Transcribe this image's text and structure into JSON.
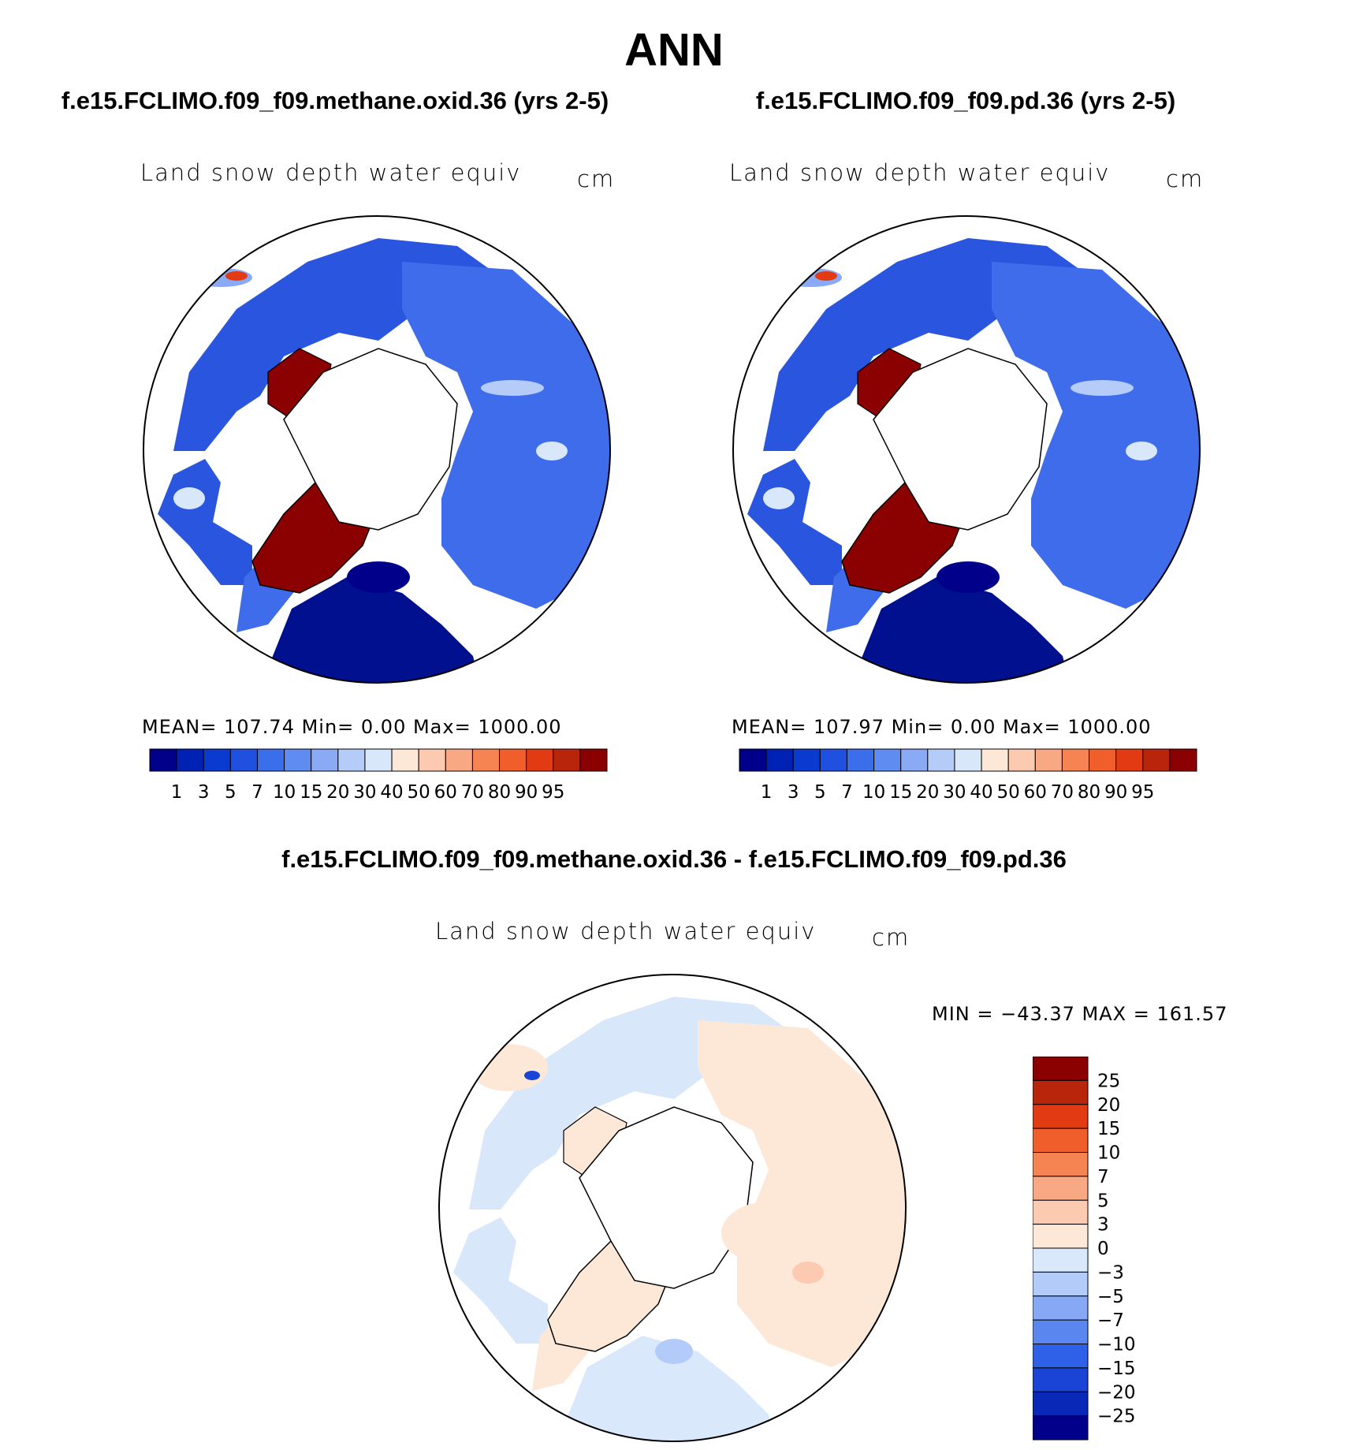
{
  "main_title": "ANN",
  "diff_title": "f.e15.FCLIMO.f09_f09.methane.oxid.36 - f.e15.FCLIMO.f09_f09.pd.36",
  "colors": {
    "land_seq": [
      "#00008b",
      "#0022b4",
      "#0a3ad0",
      "#2050e0",
      "#3b6eea",
      "#5f8cf0",
      "#8aaaf5",
      "#b5cbf8",
      "#d9e7fb"
    ],
    "warm_seq": [
      "#fde8d8",
      "#fbcab0",
      "#f8a882",
      "#f68352",
      "#f05e2b",
      "#e23a12",
      "#b9250a",
      "#8b0000"
    ],
    "diff_seq": [
      "#00008b",
      "#0a28b8",
      "#1a44d6",
      "#2e60e8",
      "#5a86f0",
      "#86a8f5",
      "#b3cbf9",
      "#dae8fc",
      "#fde8d8",
      "#fbcab0",
      "#f8a882",
      "#f68352",
      "#f05e2b",
      "#e23a12",
      "#b9250a",
      "#8b0000"
    ]
  },
  "panels": [
    {
      "case_title": "f.e15.FCLIMO.f09_f09.methane.oxid.36 (yrs 2-5)",
      "var_title": "Land snow depth water equiv",
      "units": "cm",
      "stats": "MEAN=  107.74    Min=       0.00    Max=  1000.00"
    },
    {
      "case_title": "f.e15.FCLIMO.f09_f09.pd.36 (yrs 2-5)",
      "var_title": "Land snow depth water equiv",
      "units": "cm",
      "stats": "MEAN=  107.97    Min=       0.00    Max=  1000.00"
    },
    {
      "var_title": "Land snow depth water equiv",
      "units": "cm",
      "stats": "MIN  =  −43.37  MAX  =  161.57"
    }
  ],
  "chart_data": [
    {
      "type": "heatmap",
      "title": "f.e15.FCLIMO.f09_f09.methane.oxid.36 (yrs 2-5)",
      "variable": "Land snow depth water equiv",
      "units": "cm",
      "projection": "north polar stereographic",
      "mean": 107.74,
      "min": 0.0,
      "max": 1000.0,
      "colorbar_levels": [
        "1",
        "3",
        "5",
        "7",
        "10",
        "15",
        "20",
        "30",
        "40",
        "50",
        "60",
        "70",
        "80",
        "90",
        "95"
      ]
    },
    {
      "type": "heatmap",
      "title": "f.e15.FCLIMO.f09_f09.pd.36 (yrs 2-5)",
      "variable": "Land snow depth water equiv",
      "units": "cm",
      "projection": "north polar stereographic",
      "mean": 107.97,
      "min": 0.0,
      "max": 1000.0,
      "colorbar_levels": [
        "1",
        "3",
        "5",
        "7",
        "10",
        "15",
        "20",
        "30",
        "40",
        "50",
        "60",
        "70",
        "80",
        "90",
        "95"
      ]
    },
    {
      "type": "heatmap",
      "title": "f.e15.FCLIMO.f09_f09.methane.oxid.36 - f.e15.FCLIMO.f09_f09.pd.36",
      "variable": "Land snow depth water equiv",
      "units": "cm",
      "projection": "north polar stereographic",
      "min": -43.37,
      "max": 161.57,
      "colorbar_levels": [
        "25",
        "20",
        "15",
        "10",
        "7",
        "5",
        "3",
        "0",
        "−3",
        "−5",
        "−7",
        "−10",
        "−15",
        "−20",
        "−25"
      ]
    }
  ]
}
